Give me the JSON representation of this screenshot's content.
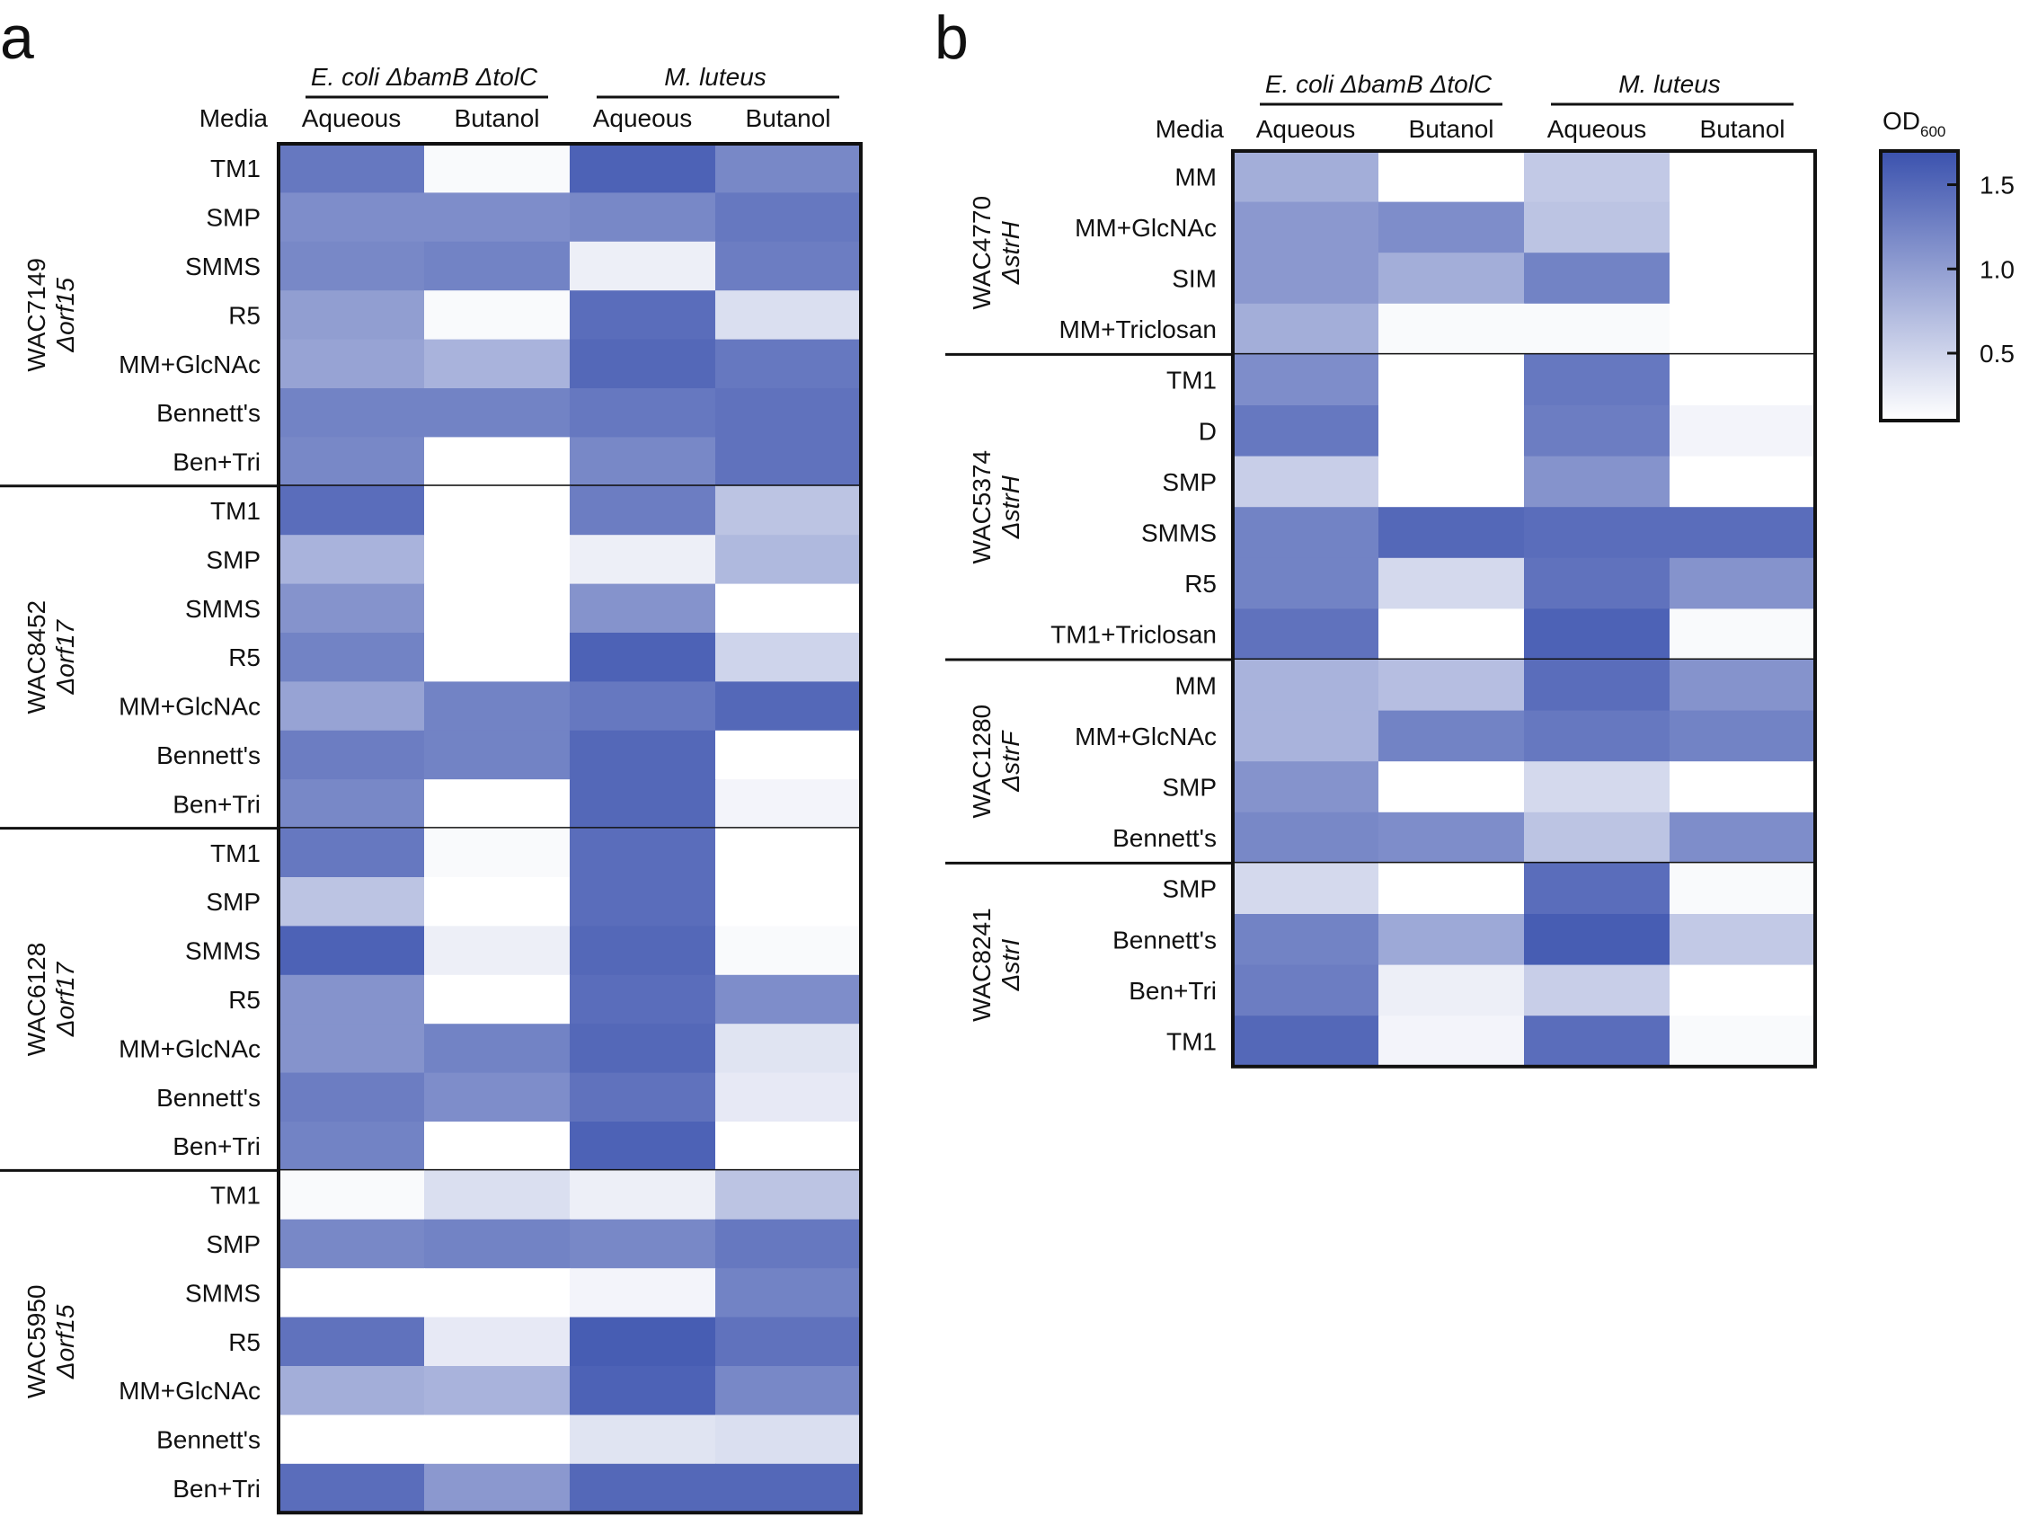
{
  "colorbar": {
    "title": "OD",
    "title_sub": "600",
    "ticks": [
      {
        "value": 1.5,
        "label": "1.5"
      },
      {
        "value": 1.0,
        "label": "1.0"
      },
      {
        "value": 0.5,
        "label": "0.5"
      }
    ],
    "range": [
      0.1,
      1.7
    ],
    "low_color": "#ffffff",
    "high_color": "#3b52ae"
  },
  "chart_data": [
    {
      "type": "heatmap",
      "panel_label": "a",
      "media_header": "Media",
      "column_groups": [
        {
          "label": "E. coli ΔbamB ΔtolC",
          "columns": [
            0,
            1
          ]
        },
        {
          "label": "M. luteus",
          "columns": [
            2,
            3
          ]
        }
      ],
      "columns": [
        "Aqueous",
        "Butanol",
        "Aqueous",
        "Butanol"
      ],
      "value_label": "OD600",
      "row_groups": [
        {
          "strain": "WAC7149",
          "mutation": "Δorf15",
          "rows": [
            {
              "media": "TM1",
              "values": [
                1.35,
                0.15,
                1.55,
                1.2
              ]
            },
            {
              "media": "SMP",
              "values": [
                1.15,
                1.15,
                1.2,
                1.35
              ]
            },
            {
              "media": "SMMS",
              "values": [
                1.2,
                1.25,
                0.25,
                1.3
              ]
            },
            {
              "media": "R5",
              "values": [
                1.0,
                0.15,
                1.45,
                0.4
              ]
            },
            {
              "media": "MM+GlcNAc",
              "values": [
                0.95,
                0.8,
                1.5,
                1.35
              ]
            },
            {
              "media": "Bennett's",
              "values": [
                1.25,
                1.25,
                1.35,
                1.4
              ]
            },
            {
              "media": "Ben+Tri",
              "values": [
                1.2,
                0.05,
                1.2,
                1.4
              ]
            }
          ]
        },
        {
          "strain": "WAC8452",
          "mutation": "Δorf17",
          "rows": [
            {
              "media": "TM1",
              "values": [
                1.45,
                0.1,
                1.3,
                0.65
              ]
            },
            {
              "media": "SMP",
              "values": [
                0.8,
                0.1,
                0.25,
                0.75
              ]
            },
            {
              "media": "SMMS",
              "values": [
                1.1,
                0.1,
                1.1,
                0.1
              ]
            },
            {
              "media": "R5",
              "values": [
                1.25,
                0.1,
                1.55,
                0.5
              ]
            },
            {
              "media": "MM+GlcNAc",
              "values": [
                0.95,
                1.25,
                1.35,
                1.5
              ]
            },
            {
              "media": "Bennett's",
              "values": [
                1.3,
                1.25,
                1.5,
                0.1
              ]
            },
            {
              "media": "Ben+Tri",
              "values": [
                1.2,
                0.1,
                1.5,
                0.2
              ]
            }
          ]
        },
        {
          "strain": "WAC6128",
          "mutation": "Δorf17",
          "rows": [
            {
              "media": "TM1",
              "values": [
                1.35,
                0.15,
                1.45,
                0.1
              ]
            },
            {
              "media": "SMP",
              "values": [
                0.65,
                0.1,
                1.45,
                0.1
              ]
            },
            {
              "media": "SMMS",
              "values": [
                1.55,
                0.25,
                1.5,
                0.15
              ]
            },
            {
              "media": "R5",
              "values": [
                1.1,
                0.1,
                1.45,
                1.15
              ]
            },
            {
              "media": "MM+GlcNAc",
              "values": [
                1.1,
                1.25,
                1.5,
                0.35
              ]
            },
            {
              "media": "Bennett's",
              "values": [
                1.3,
                1.15,
                1.4,
                0.3
              ]
            },
            {
              "media": "Ben+Tri",
              "values": [
                1.25,
                0.05,
                1.55,
                0.05
              ]
            }
          ]
        },
        {
          "strain": "WAC5950",
          "mutation": "Δorf15",
          "rows": [
            {
              "media": "TM1",
              "values": [
                0.15,
                0.4,
                0.25,
                0.65
              ]
            },
            {
              "media": "SMP",
              "values": [
                1.2,
                1.25,
                1.2,
                1.35
              ]
            },
            {
              "media": "SMMS",
              "values": [
                0.05,
                0.05,
                0.2,
                1.25
              ]
            },
            {
              "media": "R5",
              "values": [
                1.4,
                0.3,
                1.6,
                1.4
              ]
            },
            {
              "media": "MM+GlcNAc",
              "values": [
                0.85,
                0.8,
                1.55,
                1.2
              ]
            },
            {
              "media": "Bennett's",
              "values": [
                0.1,
                0.05,
                0.35,
                0.4
              ]
            },
            {
              "media": "Ben+Tri",
              "values": [
                1.45,
                1.05,
                1.5,
                1.5
              ]
            }
          ]
        }
      ]
    },
    {
      "type": "heatmap",
      "panel_label": "b",
      "media_header": "Media",
      "column_groups": [
        {
          "label": "E. coli ΔbamB ΔtolC",
          "columns": [
            0,
            1
          ]
        },
        {
          "label": "M. luteus",
          "columns": [
            2,
            3
          ]
        }
      ],
      "columns": [
        "Aqueous",
        "Butanol",
        "Aqueous",
        "Butanol"
      ],
      "value_label": "OD600",
      "row_groups": [
        {
          "strain": "WAC4770",
          "mutation": "ΔstrH",
          "rows": [
            {
              "media": "MM",
              "values": [
                0.85,
                0.05,
                0.6,
                0.05
              ]
            },
            {
              "media": "MM+GlcNAc",
              "values": [
                1.05,
                1.15,
                0.65,
                0.05
              ]
            },
            {
              "media": "SIM",
              "values": [
                1.05,
                0.85,
                1.25,
                0.05
              ]
            },
            {
              "media": "MM+Triclosan",
              "values": [
                0.85,
                0.15,
                0.15,
                0.1
              ]
            }
          ]
        },
        {
          "strain": "WAC5374",
          "mutation": "ΔstrH",
          "rows": [
            {
              "media": "TM1",
              "values": [
                1.15,
                0.1,
                1.35,
                0.1
              ]
            },
            {
              "media": "D",
              "values": [
                1.35,
                0.1,
                1.3,
                0.2
              ]
            },
            {
              "media": "SMP",
              "values": [
                0.55,
                0.1,
                1.1,
                0.1
              ]
            },
            {
              "media": "SMMS",
              "values": [
                1.25,
                1.5,
                1.45,
                1.45
              ]
            },
            {
              "media": "R5",
              "values": [
                1.25,
                0.45,
                1.4,
                1.1
              ]
            },
            {
              "media": "TM1+Triclosan",
              "values": [
                1.4,
                0.1,
                1.55,
                0.15
              ]
            }
          ]
        },
        {
          "strain": "WAC1280",
          "mutation": "ΔstrF",
          "rows": [
            {
              "media": "MM",
              "values": [
                0.8,
                0.7,
                1.45,
                1.1
              ]
            },
            {
              "media": "MM+GlcNAc",
              "values": [
                0.8,
                1.25,
                1.35,
                1.25
              ]
            },
            {
              "media": "SMP",
              "values": [
                1.1,
                0.05,
                0.45,
                0.05
              ]
            },
            {
              "media": "Bennett's",
              "values": [
                1.2,
                1.15,
                0.65,
                1.15
              ]
            }
          ]
        },
        {
          "strain": "WAC8241",
          "mutation": "ΔstrI",
          "rows": [
            {
              "media": "SMP",
              "values": [
                0.45,
                0.1,
                1.45,
                0.15
              ]
            },
            {
              "media": "Bennett's",
              "values": [
                1.25,
                0.9,
                1.6,
                0.6
              ]
            },
            {
              "media": "Ben+Tri",
              "values": [
                1.3,
                0.25,
                0.55,
                0.1
              ]
            },
            {
              "media": "TM1",
              "values": [
                1.5,
                0.2,
                1.45,
                0.15
              ]
            }
          ]
        }
      ]
    }
  ]
}
